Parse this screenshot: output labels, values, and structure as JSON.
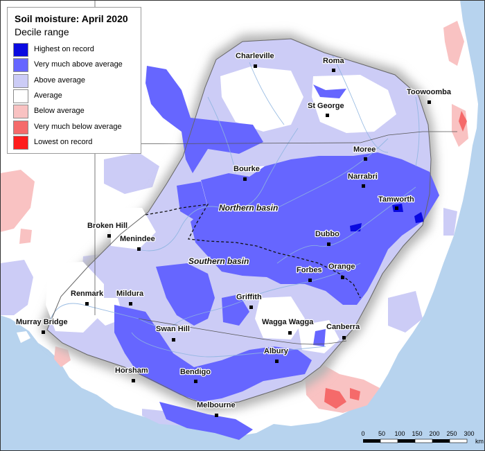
{
  "legend": {
    "title": "Soil moisture: April 2020",
    "subtitle": "Decile range",
    "items": [
      {
        "label": "Highest on record",
        "color": "#0a0ae0"
      },
      {
        "label": "Very much above average",
        "color": "#6666ff"
      },
      {
        "label": "Above average",
        "color": "#ccccf6"
      },
      {
        "label": "Average",
        "color": "#ffffff"
      },
      {
        "label": "Below average",
        "color": "#f9c2c2"
      },
      {
        "label": "Very much below average",
        "color": "#f56a6a"
      },
      {
        "label": "Lowest on record",
        "color": "#ff1c1c"
      }
    ]
  },
  "basins": {
    "northern": "Northern basin",
    "southern": "Southern basin"
  },
  "towns": [
    {
      "name": "Charleville"
    },
    {
      "name": "Roma"
    },
    {
      "name": "Toowoomba"
    },
    {
      "name": "St George"
    },
    {
      "name": "Moree"
    },
    {
      "name": "Bourke"
    },
    {
      "name": "Narrabri"
    },
    {
      "name": "Tamworth"
    },
    {
      "name": "Broken Hill"
    },
    {
      "name": "Menindee"
    },
    {
      "name": "Dubbo"
    },
    {
      "name": "Orange"
    },
    {
      "name": "Forbes"
    },
    {
      "name": "Renmark"
    },
    {
      "name": "Mildura"
    },
    {
      "name": "Griffith"
    },
    {
      "name": "Wagga Wagga"
    },
    {
      "name": "Murray Bridge"
    },
    {
      "name": "Swan Hill"
    },
    {
      "name": "Canberra"
    },
    {
      "name": "Albury"
    },
    {
      "name": "Horsham"
    },
    {
      "name": "Bendigo"
    },
    {
      "name": "Melbourne"
    }
  ],
  "scale": {
    "ticks": [
      "0",
      "50",
      "100",
      "150",
      "200",
      "250",
      "300"
    ],
    "unit": "km"
  },
  "colors": {
    "ocean": "#b7d3ee",
    "land": "#ffffff",
    "basin_shadow": "#b5b5b5",
    "rivers": "#8fb5e0"
  }
}
